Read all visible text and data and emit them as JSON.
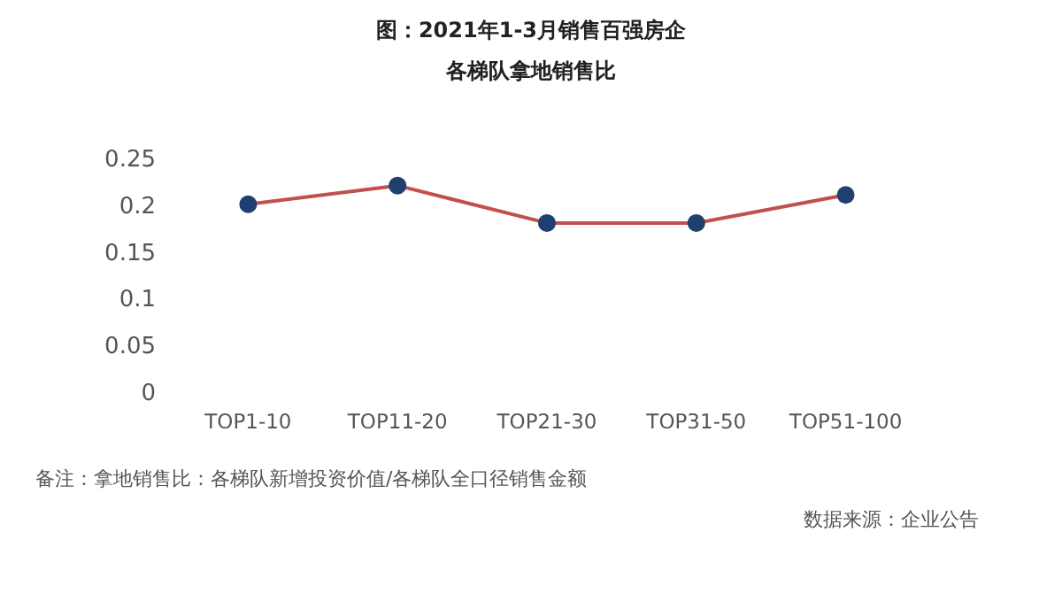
{
  "chart_data": {
    "type": "line",
    "title": "图：2021年1-3月销售百强房企",
    "subtitle": "各梯队拿地销售比",
    "categories": [
      "TOP1-10",
      "TOP11-20",
      "TOP21-30",
      "TOP31-50",
      "TOP51-100"
    ],
    "series": [
      {
        "color": "#c0504d",
        "colors": [
          "#1f3f6e",
          "#1f3f6e",
          "#1f3f6e",
          "#1f3f6e",
          "#1f3f6e"
        ],
        "values": [
          0.2,
          0.22,
          0.18,
          0.18,
          0.21
        ]
      }
    ],
    "ylim": [
      0,
      0.25
    ],
    "yticks": [
      0,
      0.05,
      0.1,
      0.15,
      0.2,
      0.25
    ],
    "marker": "circle",
    "grid": false,
    "annotations": [
      "备注：拿地销售比：各梯队新增投资价值/各梯队全口径销售金额",
      "数据来源：企业公告"
    ]
  }
}
